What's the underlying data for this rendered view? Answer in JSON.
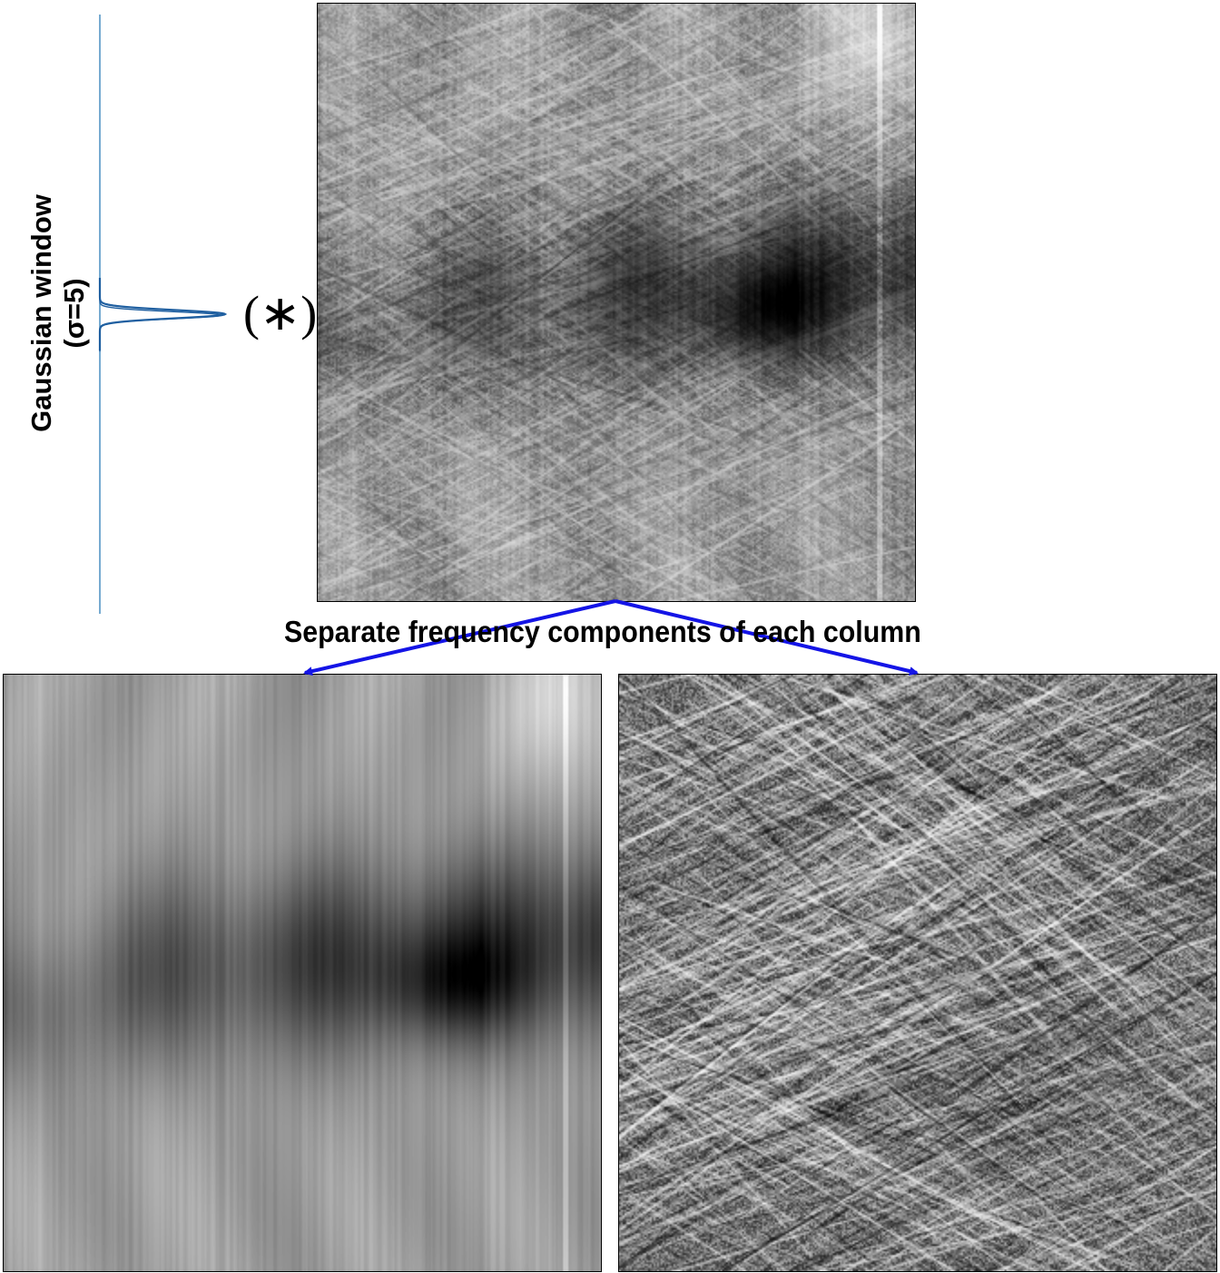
{
  "figure": {
    "window_label_line1": "Gaussian window",
    "window_label_line2": "(σ=5)",
    "convolution_symbol": "(∗)",
    "caption": "Separate frequency components of each column",
    "colors": {
      "arrow": "#1414e6",
      "gaussian_curve": "#1f5fa0",
      "axis_line": "#4a8fc2",
      "frame": "#000000"
    },
    "gaussian": {
      "sigma": 5
    },
    "panels": [
      {
        "name": "original-image",
        "description_icon": "scratched-texture-image"
      },
      {
        "name": "low-frequency-component",
        "description_icon": "blurred-image"
      },
      {
        "name": "high-frequency-component",
        "description_icon": "scratch-texture-image"
      }
    ]
  }
}
